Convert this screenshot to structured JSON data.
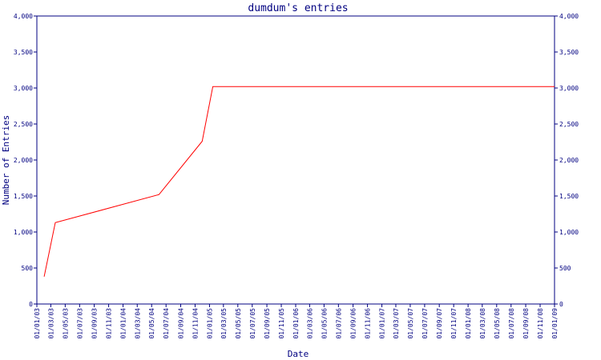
{
  "chart_data": {
    "type": "line",
    "title": "dumdum's entries",
    "xlabel": "Date",
    "ylabel": "Number of Entries",
    "ylim": [
      0,
      4000
    ],
    "yticks": [
      "0",
      "500",
      "1,000",
      "1,500",
      "2,000",
      "2,500",
      "3,000",
      "3,500",
      "4,000"
    ],
    "ytick_values": [
      0,
      500,
      1000,
      1500,
      2000,
      2500,
      3000,
      3500,
      4000
    ],
    "xlim": [
      "2003-01-01",
      "2009-01-01"
    ],
    "xticks": [
      "01/01/03",
      "01/03/03",
      "01/05/03",
      "01/07/03",
      "01/09/03",
      "01/11/03",
      "01/01/04",
      "01/03/04",
      "01/05/04",
      "01/07/04",
      "01/09/04",
      "01/11/04",
      "01/01/05",
      "01/03/05",
      "01/05/05",
      "01/07/05",
      "01/09/05",
      "01/11/05",
      "01/01/06",
      "01/03/06",
      "01/05/06",
      "01/07/06",
      "01/09/06",
      "01/11/06",
      "01/01/07",
      "01/03/07",
      "01/05/07",
      "01/07/07",
      "01/09/07",
      "01/11/07",
      "01/01/08",
      "01/03/08",
      "01/05/08",
      "01/07/08",
      "01/09/08",
      "01/11/08",
      "01/01/09"
    ],
    "xtick_values": [
      "2003-01-01",
      "2003-03-01",
      "2003-05-01",
      "2003-07-01",
      "2003-09-01",
      "2003-11-01",
      "2004-01-01",
      "2004-03-01",
      "2004-05-01",
      "2004-07-01",
      "2004-09-01",
      "2004-11-01",
      "2005-01-01",
      "2005-03-01",
      "2005-05-01",
      "2005-07-01",
      "2005-09-01",
      "2005-11-01",
      "2006-01-01",
      "2006-03-01",
      "2006-05-01",
      "2006-07-01",
      "2006-09-01",
      "2006-11-01",
      "2007-01-01",
      "2007-03-01",
      "2007-05-01",
      "2007-07-01",
      "2007-09-01",
      "2007-11-01",
      "2008-01-01",
      "2008-03-01",
      "2008-05-01",
      "2008-07-01",
      "2008-09-01",
      "2008-11-01",
      "2009-01-01"
    ],
    "series": [
      {
        "color": "#ff0000",
        "x": [
          "2003-02-01",
          "2003-03-20",
          "2004-06-01",
          "2004-12-01",
          "2005-01-15",
          "2009-01-01"
        ],
        "y": [
          380,
          1130,
          1520,
          2260,
          3020,
          3020
        ]
      }
    ],
    "axis_color": "#000080",
    "grid": false,
    "right_axis_mirrored": true
  }
}
